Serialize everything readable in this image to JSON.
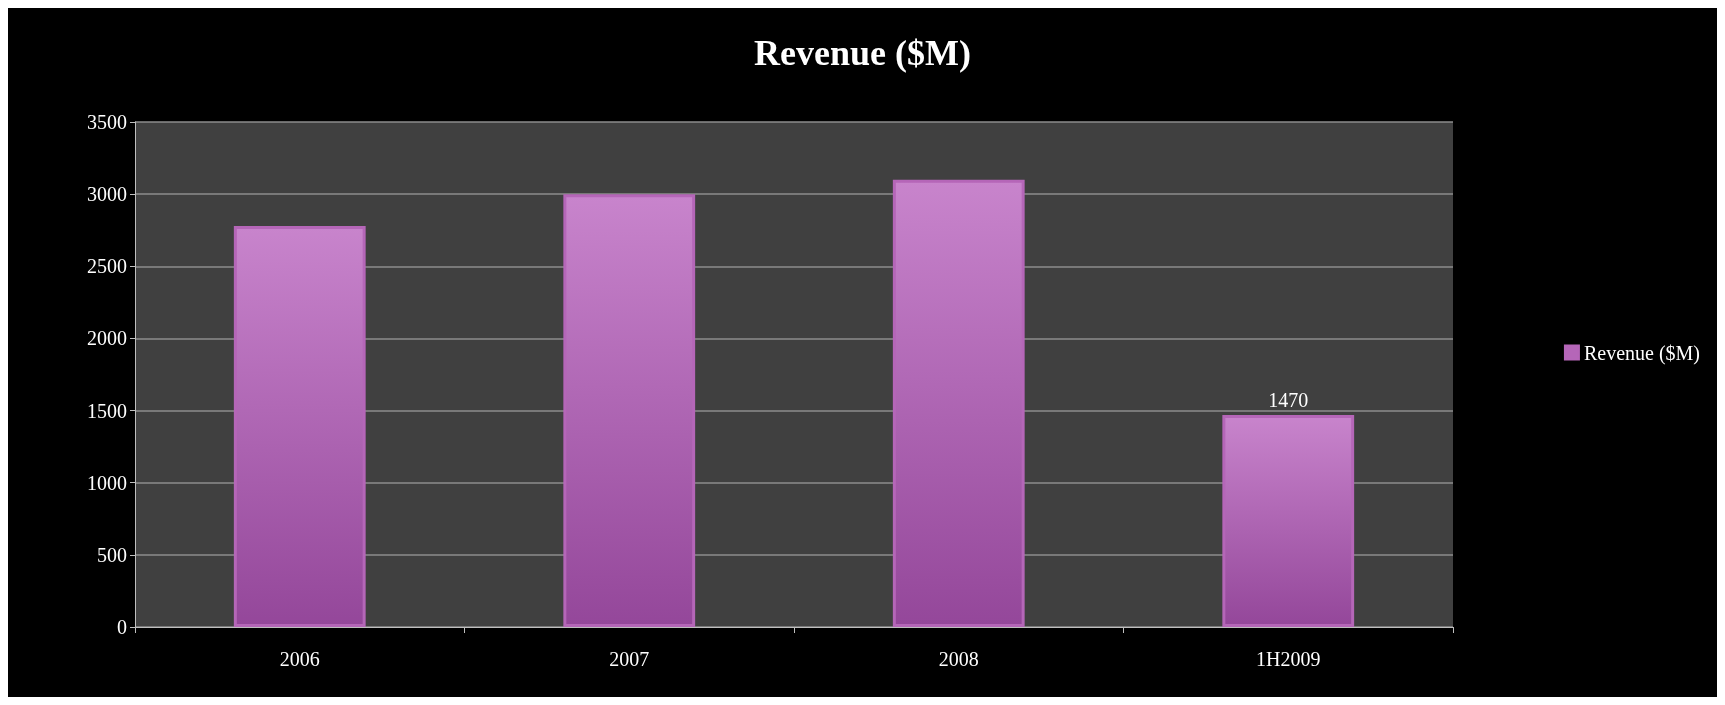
{
  "chart_data": {
    "type": "bar",
    "title": "Revenue ($M)",
    "categories": [
      "2006",
      "2007",
      "2008",
      "1H2009"
    ],
    "series": [
      {
        "name": "Revenue ($M)",
        "color": "#b566b8",
        "values": [
          2780,
          3000,
          3100,
          1470
        ],
        "value_labels": [
          null,
          null,
          null,
          "1470"
        ]
      }
    ],
    "ylim": [
      0,
      3500
    ],
    "yticks": [
      0,
      500,
      1000,
      1500,
      2000,
      2500,
      3000,
      3500
    ],
    "grid": "y",
    "legend": "right"
  }
}
